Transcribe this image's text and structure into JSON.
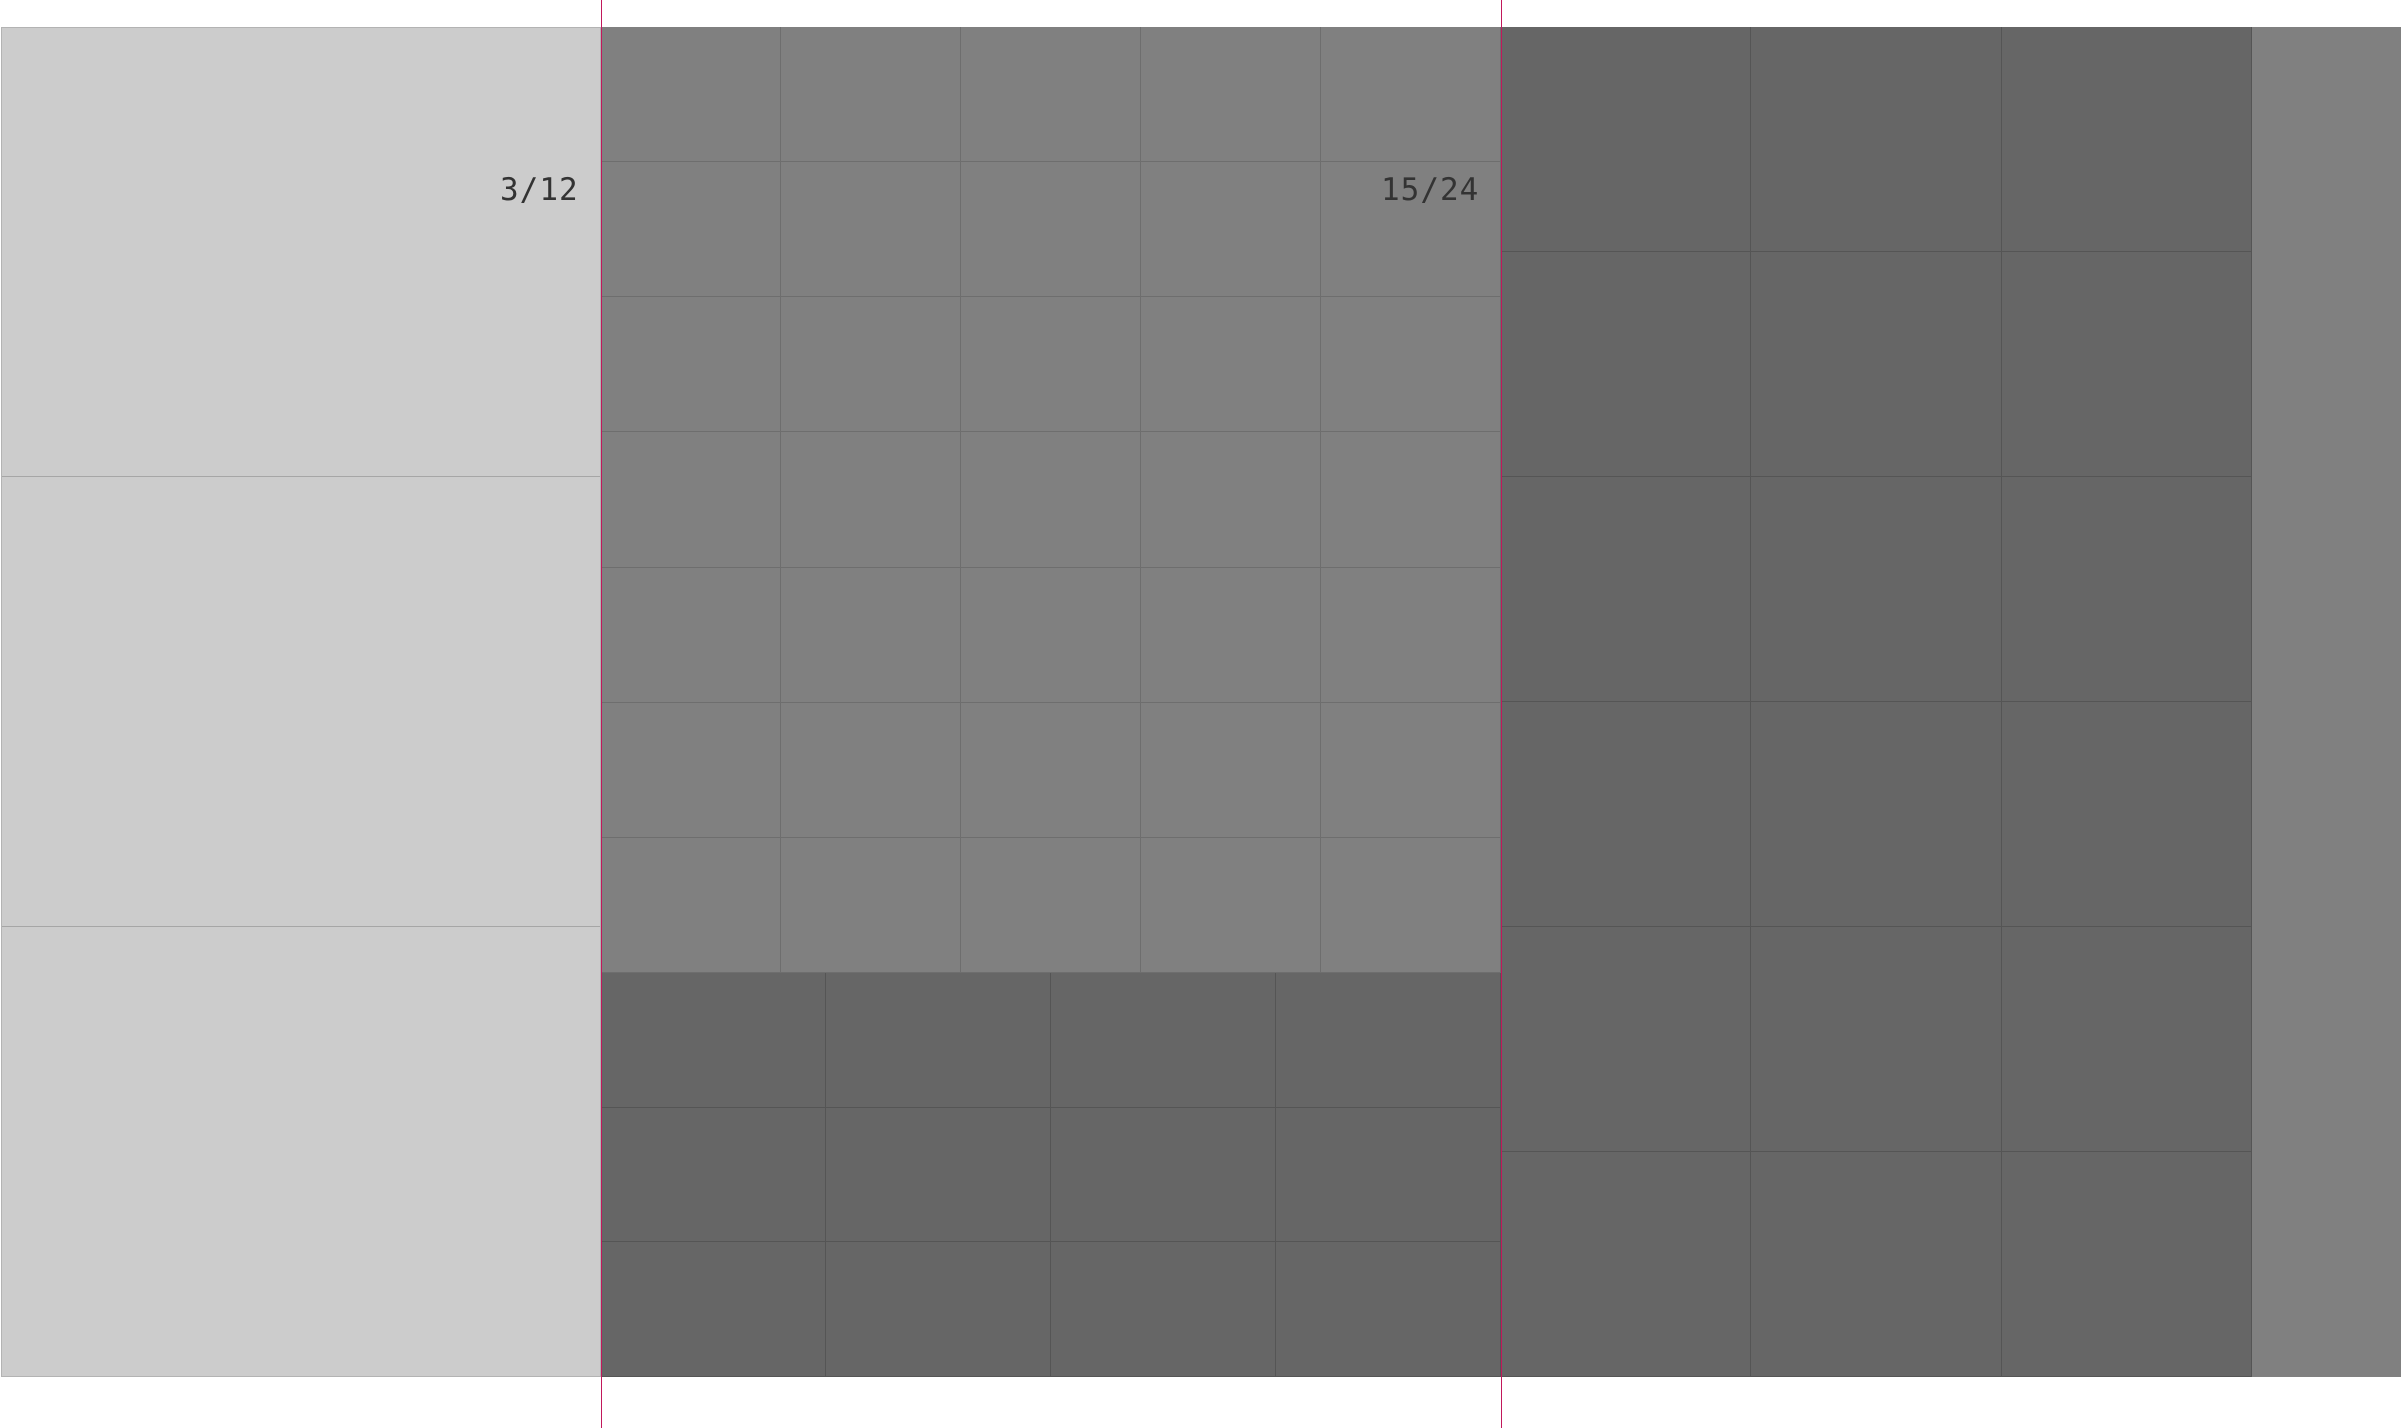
{
  "labels": {
    "fraction_left": "3/12",
    "fraction_center": "15/24"
  },
  "regions": [
    {
      "id": "region-left",
      "rows": 3,
      "cols": 1,
      "fill": "#cccccc"
    },
    {
      "id": "region-center-top",
      "rows": 7,
      "cols": 5,
      "fill": "#808080"
    },
    {
      "id": "region-center-bottom",
      "rows": 3,
      "cols": 4,
      "fill": "#666666"
    },
    {
      "id": "region-right",
      "rows": 6,
      "cols": 3,
      "fill": "#666666"
    },
    {
      "id": "region-far-right",
      "rows": 1,
      "cols": 1,
      "fill": "#808080"
    }
  ],
  "colors": {
    "guide_line": "#c2185b",
    "label_text": "#333333",
    "background": "#ffffff"
  }
}
